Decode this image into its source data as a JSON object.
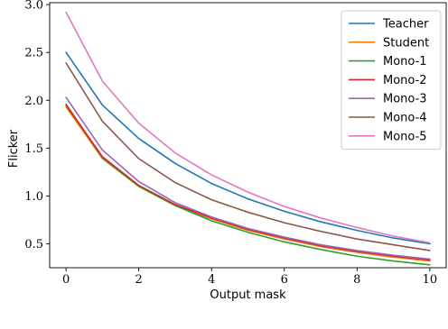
{
  "chart_data": {
    "type": "line",
    "xlabel": "Output mask",
    "ylabel": "Flicker",
    "xlim": [
      -0.45,
      10.45
    ],
    "ylim": [
      0.25,
      3.02
    ],
    "xticks": [
      0,
      2,
      4,
      6,
      8,
      10
    ],
    "xtick_labels": [
      "0",
      "2",
      "4",
      "6",
      "8",
      "10"
    ],
    "yticks": [
      0.5,
      1.0,
      1.5,
      2.0,
      2.5,
      3.0
    ],
    "ytick_labels": [
      "0.5",
      "1.0",
      "1.5",
      "2.0",
      "2.5",
      "3.0"
    ],
    "grid": false,
    "legend_position": "top-right",
    "x": [
      0,
      1,
      2,
      3,
      4,
      5,
      6,
      7,
      8,
      9,
      10
    ],
    "series": [
      {
        "name": "Teacher",
        "color": "#1f77b4",
        "values": [
          2.5,
          1.95,
          1.6,
          1.34,
          1.13,
          0.97,
          0.84,
          0.73,
          0.64,
          0.56,
          0.5
        ]
      },
      {
        "name": "Student",
        "color": "#ff7f0e",
        "values": [
          1.93,
          1.39,
          1.1,
          0.9,
          0.76,
          0.64,
          0.55,
          0.47,
          0.41,
          0.36,
          0.32
        ]
      },
      {
        "name": "Mono-1",
        "color": "#2ca02c",
        "values": [
          1.96,
          1.4,
          1.1,
          0.9,
          0.74,
          0.62,
          0.52,
          0.44,
          0.37,
          0.32,
          0.28
        ]
      },
      {
        "name": "Mono-2",
        "color": "#d62728",
        "values": [
          1.95,
          1.41,
          1.11,
          0.91,
          0.77,
          0.65,
          0.56,
          0.48,
          0.42,
          0.37,
          0.33
        ]
      },
      {
        "name": "Mono-3",
        "color": "#9467bd",
        "values": [
          2.03,
          1.48,
          1.15,
          0.93,
          0.78,
          0.66,
          0.57,
          0.49,
          0.43,
          0.38,
          0.34
        ]
      },
      {
        "name": "Mono-4",
        "color": "#8c564b",
        "values": [
          2.39,
          1.78,
          1.39,
          1.14,
          0.96,
          0.83,
          0.72,
          0.63,
          0.55,
          0.49,
          0.43
        ]
      },
      {
        "name": "Mono-5",
        "color": "#e377c2",
        "values": [
          2.92,
          2.2,
          1.76,
          1.45,
          1.22,
          1.04,
          0.89,
          0.77,
          0.67,
          0.58,
          0.51
        ]
      }
    ]
  }
}
